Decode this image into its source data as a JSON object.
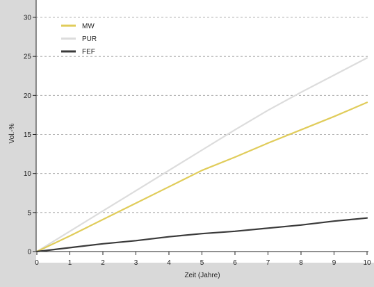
{
  "chart_data": {
    "type": "line",
    "title": "",
    "xlabel": "Zeit (Jahre)",
    "ylabel": "Vol.-%",
    "xlim": [
      0,
      10
    ],
    "ylim": [
      0,
      30
    ],
    "x_ticks": [
      "0",
      "1",
      "2",
      "3",
      "4",
      "5",
      "6",
      "7",
      "8",
      "9",
      "10"
    ],
    "y_ticks": [
      "0",
      "5",
      "10",
      "15",
      "20",
      "25",
      "30"
    ],
    "grid": "horizontal dashed",
    "legend_position": "top-left",
    "x": [
      0,
      1,
      2,
      3,
      4,
      5,
      6,
      7,
      8,
      9,
      10
    ],
    "series": [
      {
        "name": "MW",
        "color": "#e0cc5a",
        "values": [
          0,
          2.0,
          4.1,
          6.2,
          8.3,
          10.4,
          12.1,
          13.9,
          15.6,
          17.3,
          19.1
        ]
      },
      {
        "name": "PUR",
        "color": "#dcdcdc",
        "values": [
          0,
          2.6,
          5.2,
          7.8,
          10.4,
          13.0,
          15.6,
          18.1,
          20.4,
          22.6,
          24.8
        ]
      },
      {
        "name": "FEF",
        "color": "#3a3a3a",
        "values": [
          0,
          0.5,
          1.0,
          1.4,
          1.9,
          2.3,
          2.6,
          3.0,
          3.4,
          3.9,
          4.3
        ]
      }
    ]
  }
}
